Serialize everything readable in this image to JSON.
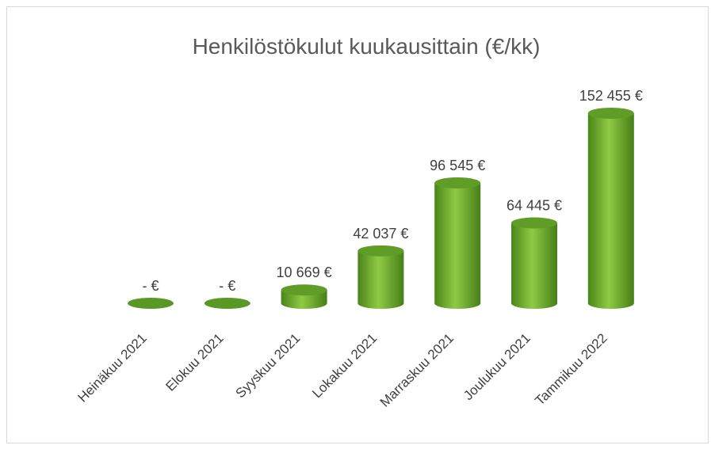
{
  "chart_data": {
    "type": "bar",
    "title": "Henkilöstökulut kuukausittain (€/kk)",
    "categories": [
      "Heinäkuu 2021",
      "Elokuu 2021",
      "Syyskuu 2021",
      "Lokakuu 2021",
      "Marraskuu 2021",
      "Joulukuu 2021",
      "Tammikuu 2022"
    ],
    "values": [
      0,
      0,
      10669,
      42037,
      96545,
      64445,
      152455
    ],
    "value_labels": [
      "-   €",
      "-   €",
      "10 669 €",
      "42 037 €",
      "96 545 €",
      "64 445 €",
      "152 455 €"
    ],
    "color": "#76b531"
  }
}
